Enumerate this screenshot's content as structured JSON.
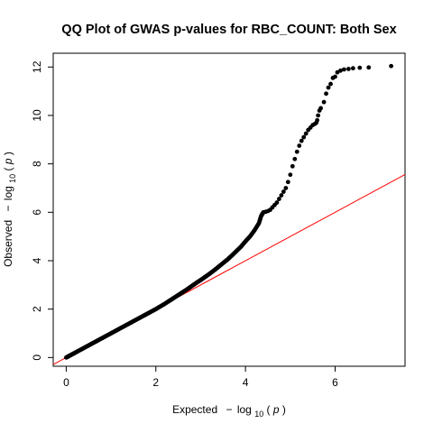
{
  "chart_data": {
    "type": "scatter",
    "title": "QQ Plot of GWAS p-values for RBC_COUNT: Both Sex",
    "xlabel": {
      "prefix": "Expected",
      "minus": "−",
      "log": "log",
      "sub": "10",
      "open": "(",
      "var": "p",
      "close": ")"
    },
    "ylabel": {
      "prefix": "Observed",
      "minus": "−",
      "log": "log",
      "sub": "10",
      "open": "(",
      "var": "p",
      "close": ")"
    },
    "xlim": [
      -0.29,
      7.56
    ],
    "ylim": [
      -0.36,
      12.57
    ],
    "x_ticks": [
      "0",
      "2",
      "4",
      "6"
    ],
    "y_ticks": [
      "0",
      "2",
      "4",
      "6",
      "8",
      "10",
      "12"
    ],
    "grid": false,
    "point_color": "#000000",
    "reference_line": {
      "slope": 1,
      "intercept": 0,
      "color": "#ff0000"
    },
    "points": [
      [
        0.0,
        0.0
      ],
      [
        0.05,
        0.05
      ],
      [
        0.1,
        0.1
      ],
      [
        0.15,
        0.15
      ],
      [
        0.2,
        0.2
      ],
      [
        0.3,
        0.3
      ],
      [
        0.4,
        0.4
      ],
      [
        0.5,
        0.5
      ],
      [
        0.6,
        0.6
      ],
      [
        0.7,
        0.7
      ],
      [
        0.8,
        0.8
      ],
      [
        0.9,
        0.9
      ],
      [
        1.0,
        1.0
      ],
      [
        1.1,
        1.1
      ],
      [
        1.2,
        1.2
      ],
      [
        1.3,
        1.3
      ],
      [
        1.4,
        1.4
      ],
      [
        1.5,
        1.5
      ],
      [
        1.6,
        1.6
      ],
      [
        1.7,
        1.7
      ],
      [
        1.8,
        1.8
      ],
      [
        1.9,
        1.9
      ],
      [
        2.0,
        2.0
      ],
      [
        2.1,
        2.11
      ],
      [
        2.2,
        2.22
      ],
      [
        2.3,
        2.34
      ],
      [
        2.4,
        2.46
      ],
      [
        2.5,
        2.58
      ],
      [
        2.6,
        2.7
      ],
      [
        2.7,
        2.82
      ],
      [
        2.8,
        2.95
      ],
      [
        2.9,
        3.08
      ],
      [
        3.0,
        3.2
      ],
      [
        3.1,
        3.33
      ],
      [
        3.2,
        3.46
      ],
      [
        3.3,
        3.6
      ],
      [
        3.4,
        3.75
      ],
      [
        3.5,
        3.9
      ],
      [
        3.6,
        4.05
      ],
      [
        3.7,
        4.22
      ],
      [
        3.8,
        4.4
      ],
      [
        3.9,
        4.58
      ],
      [
        4.0,
        4.8
      ],
      [
        4.1,
        5.0
      ],
      [
        4.2,
        5.25
      ],
      [
        4.3,
        5.55
      ],
      [
        4.35,
        5.85
      ],
      [
        4.4,
        6.0
      ],
      [
        4.45,
        6.02
      ],
      [
        4.5,
        6.05
      ],
      [
        4.55,
        6.1
      ],
      [
        4.6,
        6.2
      ],
      [
        4.65,
        6.3
      ],
      [
        4.7,
        6.4
      ],
      [
        4.75,
        6.55
      ],
      [
        4.8,
        6.7
      ],
      [
        4.85,
        6.85
      ],
      [
        4.9,
        7.0
      ],
      [
        4.95,
        7.25
      ],
      [
        5.0,
        7.55
      ],
      [
        5.05,
        7.9
      ],
      [
        5.1,
        8.2
      ],
      [
        5.15,
        8.5
      ],
      [
        5.2,
        8.75
      ],
      [
        5.25,
        8.95
      ],
      [
        5.3,
        9.1
      ],
      [
        5.35,
        9.25
      ],
      [
        5.4,
        9.4
      ],
      [
        5.45,
        9.5
      ],
      [
        5.5,
        9.6
      ],
      [
        5.55,
        9.65
      ],
      [
        5.58,
        9.7
      ],
      [
        5.6,
        9.8
      ],
      [
        5.62,
        10.0
      ],
      [
        5.65,
        10.2
      ],
      [
        5.68,
        10.3
      ],
      [
        5.75,
        10.55
      ],
      [
        5.8,
        10.9
      ],
      [
        5.85,
        11.15
      ],
      [
        5.9,
        11.3
      ],
      [
        5.95,
        11.55
      ],
      [
        6.0,
        11.6
      ],
      [
        6.05,
        11.78
      ],
      [
        6.12,
        11.85
      ],
      [
        6.2,
        11.9
      ],
      [
        6.3,
        11.92
      ],
      [
        6.4,
        11.95
      ],
      [
        6.55,
        11.97
      ],
      [
        6.75,
        11.98
      ],
      [
        7.25,
        12.04
      ]
    ]
  }
}
